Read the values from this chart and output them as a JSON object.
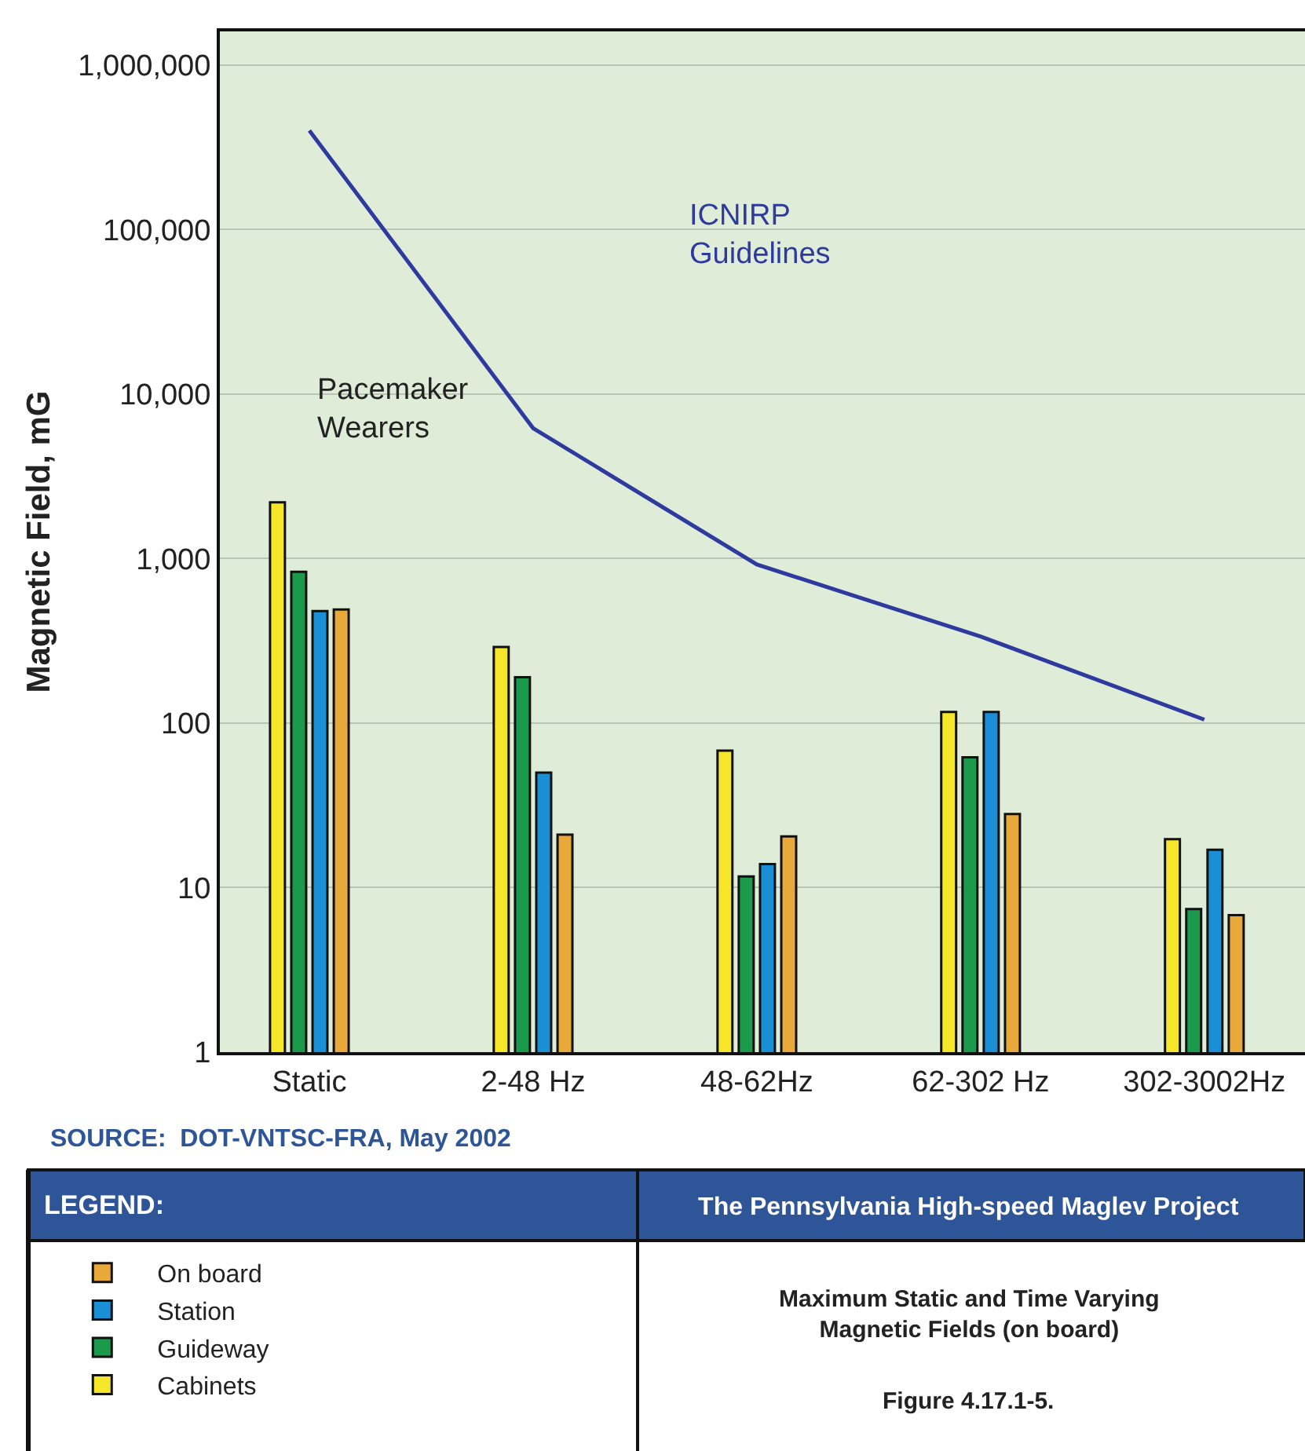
{
  "chart_data": {
    "type": "bar",
    "title": "The Pennsylvania High-speed Maglev Project",
    "subtitle": "Maximum Static and Time Varying\nMagnetic Fields (on board)",
    "ylabel": "Magnetic Field, mG",
    "legend_title": "LEGEND:",
    "categories": [
      "Static",
      "2-48 Hz",
      "48-62Hz",
      "62-302 Hz",
      "302-3002Hz"
    ],
    "series": [
      {
        "name": "Cabinets",
        "color": "#f5e62a",
        "values": [
          2200,
          290,
          68,
          117,
          19.7
        ]
      },
      {
        "name": "Guideway",
        "color": "#1a9a4a",
        "values": [
          830,
          190,
          11.7,
          62,
          7.4
        ]
      },
      {
        "name": "Station",
        "color": "#1a8fd6",
        "values": [
          480,
          50,
          13.9,
          117,
          17
        ]
      },
      {
        "name": "On board",
        "color": "#e8a93a",
        "values": [
          490,
          21,
          20.5,
          28,
          6.8
        ]
      },
      {
        "type": "line",
        "color": "#2e3a9e",
        "values": [
          400000,
          6200,
          920,
          336,
          105
        ]
      }
    ],
    "log": true,
    "ylim": [
      1,
      1600000
    ],
    "yticks": [
      1,
      10,
      100,
      {
        "value": 1000,
        "label": "1,000"
      },
      {
        "value": 10000,
        "label": "10,000"
      },
      {
        "value": 100000,
        "label": "100,000"
      },
      {
        "value": 1000000,
        "label": "1,000,000"
      }
    ],
    "grid": "y",
    "legend": "bottom left",
    "annotations": [
      "Pacemaker\nWearers",
      "ICNIRP\nGuidelines",
      "SOURCE:  DOT-VNTSC-FRA, May 2002",
      "Figure 4.17.1-5."
    ]
  }
}
